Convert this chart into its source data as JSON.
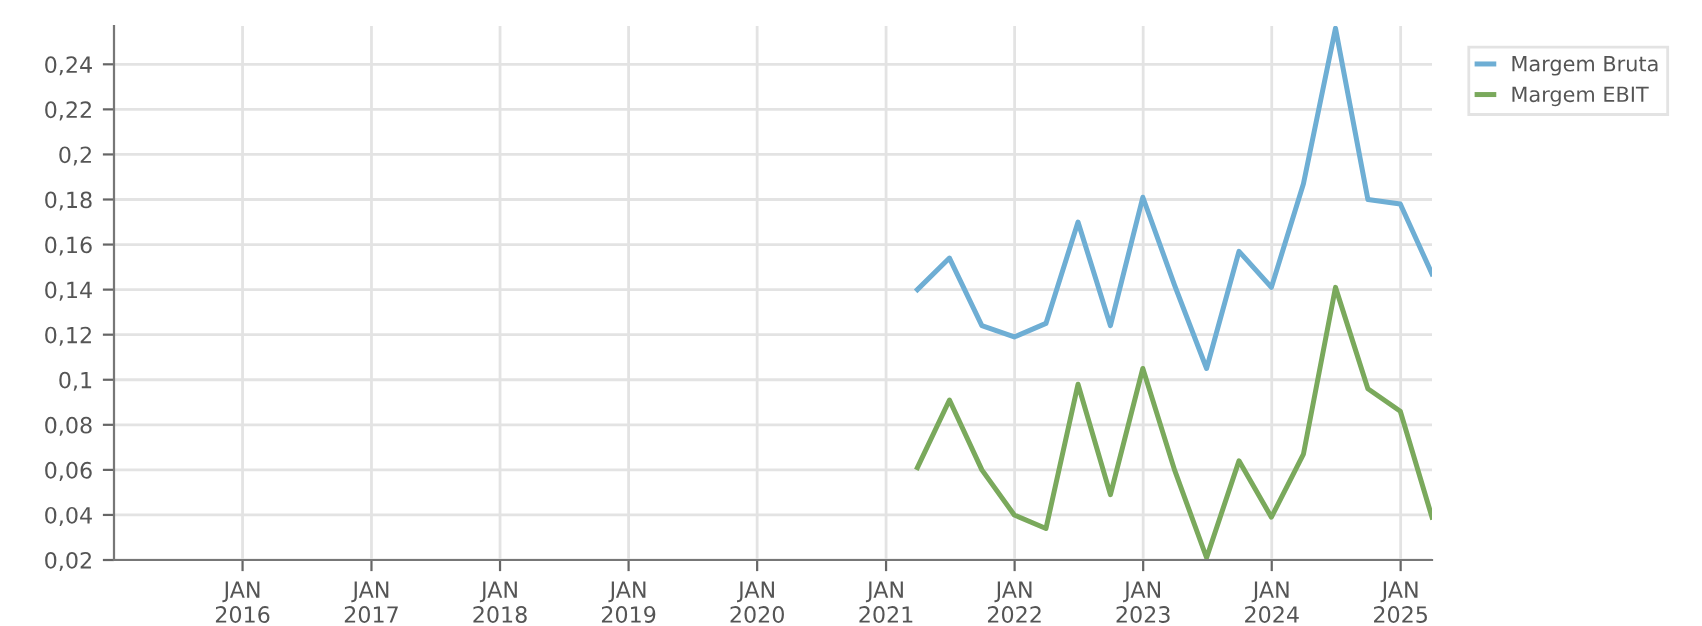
{
  "chart_data": {
    "type": "line",
    "x": [
      "2021-03-31",
      "2021-06-30",
      "2021-09-30",
      "2021-12-31",
      "2022-03-31",
      "2022-06-30",
      "2022-09-30",
      "2022-12-31",
      "2023-03-31",
      "2023-06-30",
      "2023-09-30",
      "2023-12-31",
      "2024-03-31",
      "2024-06-30",
      "2024-09-30",
      "2024-12-31",
      "2025-03-31"
    ],
    "series": [
      {
        "name": "Margem Bruta",
        "color": "#6eaed4",
        "values": [
          0.14,
          0.154,
          0.124,
          0.119,
          0.125,
          0.17,
          0.124,
          0.181,
          0.142,
          0.105,
          0.157,
          0.141,
          0.187,
          0.256,
          0.18,
          0.178,
          0.147
        ]
      },
      {
        "name": "Margem EBIT",
        "color": "#7aa95c",
        "values": [
          0.061,
          0.091,
          0.06,
          0.04,
          0.034,
          0.098,
          0.049,
          0.105,
          0.06,
          0.021,
          0.064,
          0.039,
          0.067,
          0.141,
          0.096,
          0.086,
          0.039
        ]
      }
    ],
    "xlim": [
      "2015-01-01",
      "2025-03-31"
    ],
    "xticks": [
      {
        "value": "2016-01-01",
        "label": "JAN\n2016"
      },
      {
        "value": "2017-01-01",
        "label": "JAN\n2017"
      },
      {
        "value": "2018-01-01",
        "label": "JAN\n2018"
      },
      {
        "value": "2019-01-01",
        "label": "JAN\n2019"
      },
      {
        "value": "2020-01-01",
        "label": "JAN\n2020"
      },
      {
        "value": "2021-01-01",
        "label": "JAN\n2021"
      },
      {
        "value": "2022-01-01",
        "label": "JAN\n2022"
      },
      {
        "value": "2023-01-01",
        "label": "JAN\n2023"
      },
      {
        "value": "2024-01-01",
        "label": "JAN\n2024"
      },
      {
        "value": "2025-01-01",
        "label": "JAN\n2025"
      }
    ],
    "ylim": [
      0.02,
      0.257
    ],
    "yticks": [
      {
        "value": 0.02,
        "label": "0,02"
      },
      {
        "value": 0.04,
        "label": "0,04"
      },
      {
        "value": 0.06,
        "label": "0,06"
      },
      {
        "value": 0.08,
        "label": "0,08"
      },
      {
        "value": 0.1,
        "label": "0,1"
      },
      {
        "value": 0.12,
        "label": "0,12"
      },
      {
        "value": 0.14,
        "label": "0,14"
      },
      {
        "value": 0.16,
        "label": "0,16"
      },
      {
        "value": 0.18,
        "label": "0,18"
      },
      {
        "value": 0.2,
        "label": "0,2"
      },
      {
        "value": 0.22,
        "label": "0,22"
      },
      {
        "value": 0.24,
        "label": "0,24"
      }
    ],
    "grid": true,
    "legend": "top right",
    "marker": "none",
    "line_style": "solid"
  }
}
